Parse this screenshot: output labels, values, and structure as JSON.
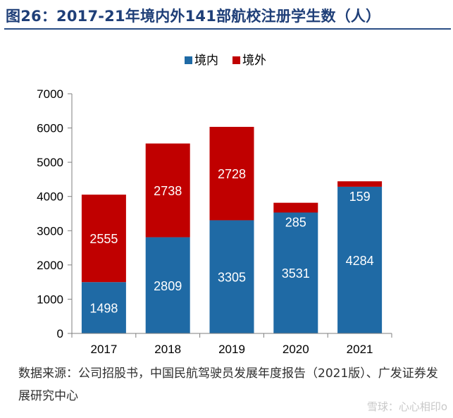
{
  "figure_title": "图26：2017-21年境内外141部航校注册学生数（人）",
  "source": "数据来源：公司招股书，中国民航驾驶员发展年度报告（2021版）、广发证券发展研究中心",
  "watermark": "雪球：心心相印o",
  "colors": {
    "domestic": "#1f6aa5",
    "foreign": "#c00000"
  },
  "chart_data": {
    "type": "bar",
    "stacked": true,
    "categories": [
      "2017",
      "2018",
      "2019",
      "2020",
      "2021"
    ],
    "series": [
      {
        "name": "境内",
        "values": [
          1498,
          2809,
          3305,
          3531,
          4284
        ]
      },
      {
        "name": "境外",
        "values": [
          2555,
          2738,
          2728,
          285,
          159
        ]
      }
    ],
    "ylim": [
      0,
      7000
    ],
    "yticks": [
      0,
      1000,
      2000,
      3000,
      4000,
      5000,
      6000,
      7000
    ],
    "legend_position": "top-center",
    "grid": false
  }
}
